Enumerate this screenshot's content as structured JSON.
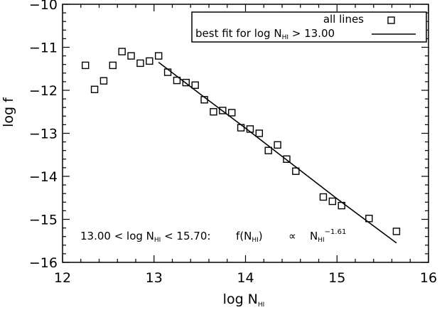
{
  "chart_data": {
    "type": "scatter",
    "xlabel": {
      "main": "log N",
      "sub": "HI"
    },
    "ylabel": "log f",
    "xlim": [
      12,
      16
    ],
    "ylim": [
      -16,
      -10
    ],
    "x_ticks": [
      12,
      13,
      14,
      15,
      16
    ],
    "y_ticks": [
      -10,
      -11,
      -12,
      -13,
      -14,
      -15,
      -16
    ],
    "x_tick_labels": [
      "12",
      "13",
      "14",
      "15",
      "16"
    ],
    "y_tick_labels": [
      "−10",
      "−11",
      "−12",
      "−13",
      "−14",
      "−15",
      "−16"
    ],
    "legend": {
      "position": "top-right",
      "points_label": "all lines",
      "fit_label_pre": "best fit for log N",
      "fit_label_sub": "HI",
      "fit_label_post": " > 13.00"
    },
    "series": [
      {
        "name": "all lines",
        "marker": "open-square",
        "points": [
          [
            12.25,
            -11.42
          ],
          [
            12.35,
            -11.98
          ],
          [
            12.45,
            -11.78
          ],
          [
            12.55,
            -11.42
          ],
          [
            12.65,
            -11.1
          ],
          [
            12.75,
            -11.2
          ],
          [
            12.85,
            -11.37
          ],
          [
            12.95,
            -11.32
          ],
          [
            13.05,
            -11.2
          ],
          [
            13.15,
            -11.58
          ],
          [
            13.25,
            -11.77
          ],
          [
            13.35,
            -11.82
          ],
          [
            13.45,
            -11.88
          ],
          [
            13.55,
            -12.22
          ],
          [
            13.65,
            -12.5
          ],
          [
            13.75,
            -12.47
          ],
          [
            13.85,
            -12.52
          ],
          [
            13.95,
            -12.87
          ],
          [
            14.05,
            -12.9
          ],
          [
            14.15,
            -13.0
          ],
          [
            14.25,
            -13.4
          ],
          [
            14.35,
            -13.27
          ],
          [
            14.45,
            -13.6
          ],
          [
            14.55,
            -13.88
          ],
          [
            14.85,
            -14.48
          ],
          [
            14.95,
            -14.58
          ],
          [
            15.05,
            -14.68
          ],
          [
            15.35,
            -14.98
          ],
          [
            15.65,
            -15.28
          ]
        ]
      },
      {
        "name": "best fit for log N HI > 13.00",
        "type": "line",
        "points": [
          [
            13.05,
            -11.35
          ],
          [
            13.5,
            -12.08
          ],
          [
            14.0,
            -12.88
          ],
          [
            14.5,
            -13.7
          ],
          [
            15.0,
            -14.52
          ],
          [
            15.65,
            -15.55
          ]
        ]
      }
    ],
    "annotation": {
      "range_text": "13.00 < log N",
      "range_sub": "HI",
      "range_text2": " < 15.70:",
      "func_text": "f(N",
      "func_sub": "HI",
      "func_close": ")",
      "prop": "∝",
      "power_base": "N",
      "power_sub": "HI",
      "power_exp": "−1.61"
    }
  }
}
